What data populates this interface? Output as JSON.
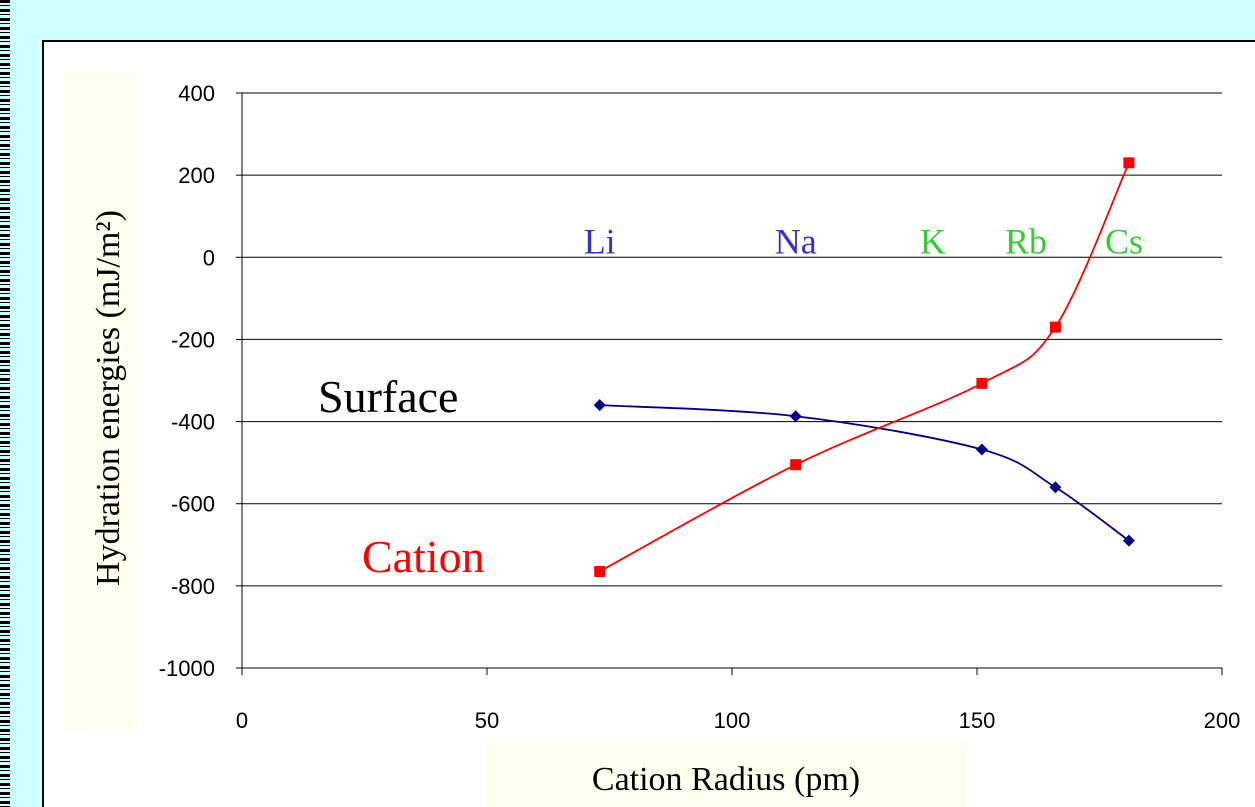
{
  "chart_data": {
    "type": "line",
    "xlabel": "Cation Radius (pm)",
    "ylabel": "Hydration energies (mJ/m²)",
    "xlim": [
      0,
      200
    ],
    "ylim": [
      -1000,
      400
    ],
    "xticks": [
      0,
      50,
      100,
      150,
      200
    ],
    "yticks": [
      400,
      200,
      0,
      -200,
      -400,
      -600,
      -800,
      -1000
    ],
    "grid": "horizontal",
    "series": [
      {
        "name": "Surface",
        "color": "#000080",
        "label_color": "#000000",
        "marker": "diamond",
        "x": [
          73,
          113,
          151,
          166,
          181
        ],
        "y": [
          -360,
          -387,
          -468,
          -560,
          -690
        ]
      },
      {
        "name": "Cation",
        "color": "#ff0000",
        "label_color": "#ff0000",
        "marker": "square",
        "x": [
          73,
          113,
          151,
          166,
          181
        ],
        "y": [
          -765,
          -505,
          -307,
          -170,
          230
        ]
      }
    ],
    "annotations": [
      {
        "text": "Li",
        "color": "#3333cc",
        "x": 73
      },
      {
        "text": "Na",
        "color": "#3333cc",
        "x": 113
      },
      {
        "text": "K",
        "color": "#33cc33",
        "x": 141
      },
      {
        "text": "Rb",
        "color": "#33cc33",
        "x": 160
      },
      {
        "text": "Cs",
        "color": "#33cc33",
        "x": 180
      }
    ]
  }
}
